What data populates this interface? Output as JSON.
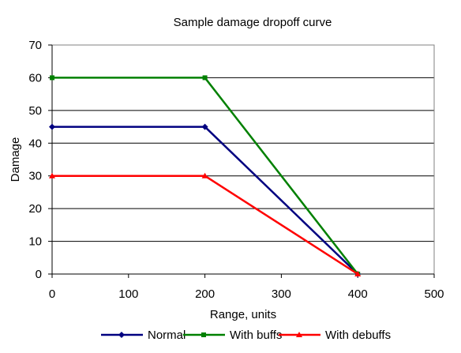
{
  "chart_data": {
    "type": "line",
    "title": "Sample damage dropoff curve",
    "xlabel": "Range, units",
    "ylabel": "Damage",
    "xlim": [
      0,
      500
    ],
    "ylim": [
      0,
      70
    ],
    "xticks": [
      0,
      100,
      200,
      300,
      400,
      500
    ],
    "yticks": [
      0,
      10,
      20,
      30,
      40,
      50,
      60,
      70
    ],
    "grid": "horizontal",
    "legend_position": "bottom",
    "series": [
      {
        "name": "Normal",
        "color": "#000080",
        "marker": "diamond",
        "x": [
          0,
          200,
          400
        ],
        "y": [
          45,
          45,
          0
        ]
      },
      {
        "name": "With buffs",
        "color": "#008000",
        "marker": "square",
        "x": [
          0,
          200,
          400
        ],
        "y": [
          60,
          60,
          0
        ]
      },
      {
        "name": "With debuffs",
        "color": "#FF0000",
        "marker": "triangle",
        "x": [
          0,
          200,
          400
        ],
        "y": [
          30,
          30,
          0
        ]
      }
    ]
  }
}
